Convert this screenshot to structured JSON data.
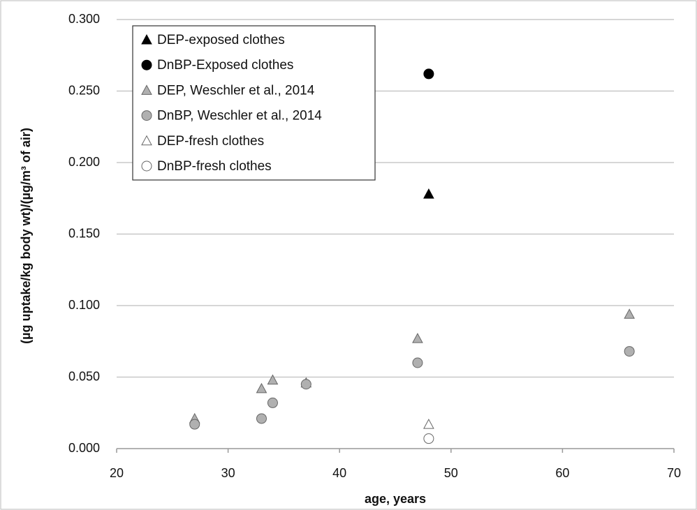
{
  "chart_data": {
    "type": "scatter",
    "x_label": "age, years",
    "y_label": "(µg uptake/kg body wt)/(µg/m³ of air)",
    "xlim": [
      20,
      70
    ],
    "xticks": [
      20,
      30,
      40,
      50,
      60,
      70
    ],
    "ylim": [
      0,
      0.3
    ],
    "yticks": [
      {
        "value": 0,
        "label": "0.000"
      },
      {
        "value": 0.05,
        "label": "0.050"
      },
      {
        "value": 0.1,
        "label": "0.100"
      },
      {
        "value": 0.15,
        "label": "0.150"
      },
      {
        "value": 0.2,
        "label": "0.200"
      },
      {
        "value": 0.25,
        "label": "0.250"
      },
      {
        "value": 0.3,
        "label": "0.300"
      }
    ],
    "grid": true,
    "legend": "upper left",
    "series": [
      {
        "name": "DEP-exposed clothes",
        "marker": "triangle",
        "color": "#000000",
        "x": [
          48
        ],
        "values": [
          0.178
        ]
      },
      {
        "name": "DnBP-Exposed clothes",
        "marker": "circle",
        "color": "#000000",
        "x": [
          48
        ],
        "values": [
          0.262
        ]
      },
      {
        "name": "DEP, Weschler et al., 2014",
        "marker": "triangle",
        "color": "#b0b0b0",
        "x": [
          27,
          33,
          34,
          37,
          47,
          66
        ],
        "values": [
          0.021,
          0.042,
          0.048,
          0.046,
          0.077,
          0.094
        ]
      },
      {
        "name": "DnBP, Weschler et al., 2014",
        "marker": "circle",
        "color": "#b0b0b0",
        "x": [
          27,
          33,
          34,
          37,
          47,
          66
        ],
        "values": [
          0.017,
          0.021,
          0.032,
          0.045,
          0.06,
          0.068
        ]
      },
      {
        "name": "DEP-fresh clothes",
        "marker": "triangle",
        "color": "#ffffff",
        "x": [
          48
        ],
        "values": [
          0.017
        ]
      },
      {
        "name": "DnBP-fresh clothes",
        "marker": "circle",
        "color": "#ffffff",
        "x": [
          48
        ],
        "values": [
          0.007
        ]
      }
    ]
  }
}
